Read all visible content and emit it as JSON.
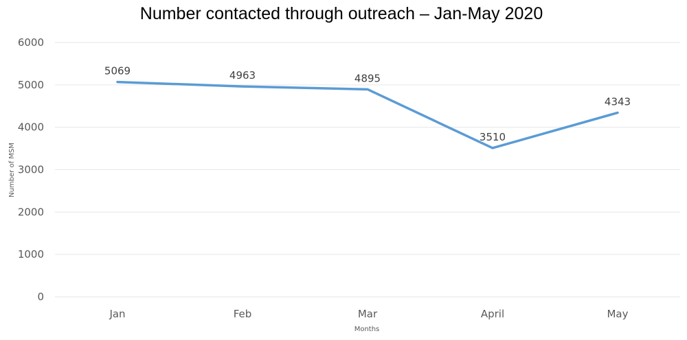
{
  "chart_data": {
    "type": "line",
    "title": "Number contacted through outreach –  Jan-May 2020",
    "xlabel": "Months",
    "ylabel": "Number of MSM",
    "categories": [
      "Jan",
      "Feb",
      "Mar",
      "April",
      "May"
    ],
    "series": [
      {
        "name": "Number of MSM",
        "values": [
          5069,
          4963,
          4895,
          3510,
          4343
        ],
        "color": "#5b9bd5"
      }
    ],
    "ylim": [
      0,
      6000
    ],
    "yticks": [
      0,
      1000,
      2000,
      3000,
      4000,
      5000,
      6000
    ],
    "grid": true,
    "data_labels": true,
    "legend": "none"
  }
}
